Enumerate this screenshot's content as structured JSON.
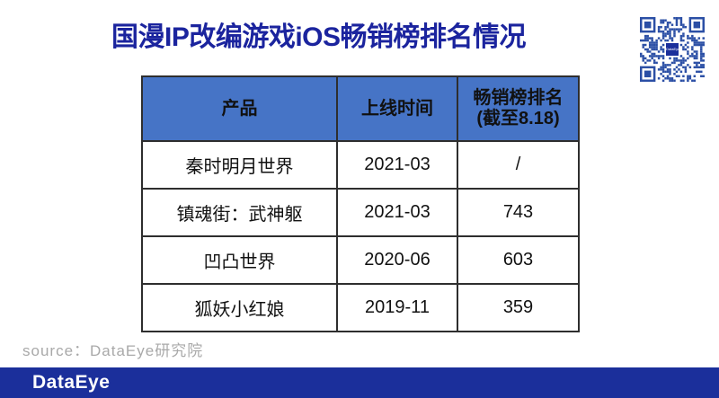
{
  "title": "国漫IP改编游戏iOS畅销榜排名情况",
  "chart_data": {
    "type": "table",
    "title": "国漫IP改编游戏iOS畅销榜排名情况",
    "columns": [
      "产品",
      "上线时间",
      "畅销榜排名(截至8.18)"
    ],
    "rows": [
      [
        "秦时明月世界",
        "2021-03",
        "/"
      ],
      [
        "镇魂街：武神躯",
        "2021-03",
        "743"
      ],
      [
        "凹凸世界",
        "2020-06",
        "603"
      ],
      [
        "狐妖小红娘",
        "2019-11",
        "359"
      ]
    ]
  },
  "header_display": {
    "product": "产品",
    "launch_date": "上线时间",
    "rank_line1": "畅销榜排名",
    "rank_line2": "(截至8.18)"
  },
  "source": {
    "text": "source：DataEye研究院"
  },
  "footer": {
    "brand": "DataEye"
  },
  "qr": {
    "name": "qr-code",
    "center_text": "DataEye"
  },
  "colors": {
    "title_blue": "#1b249e",
    "header_blue": "#4674c6",
    "footer_blue": "#1b2f9b",
    "qr_blue": "#2b4fa5",
    "source_gray": "#a9a9a9"
  }
}
